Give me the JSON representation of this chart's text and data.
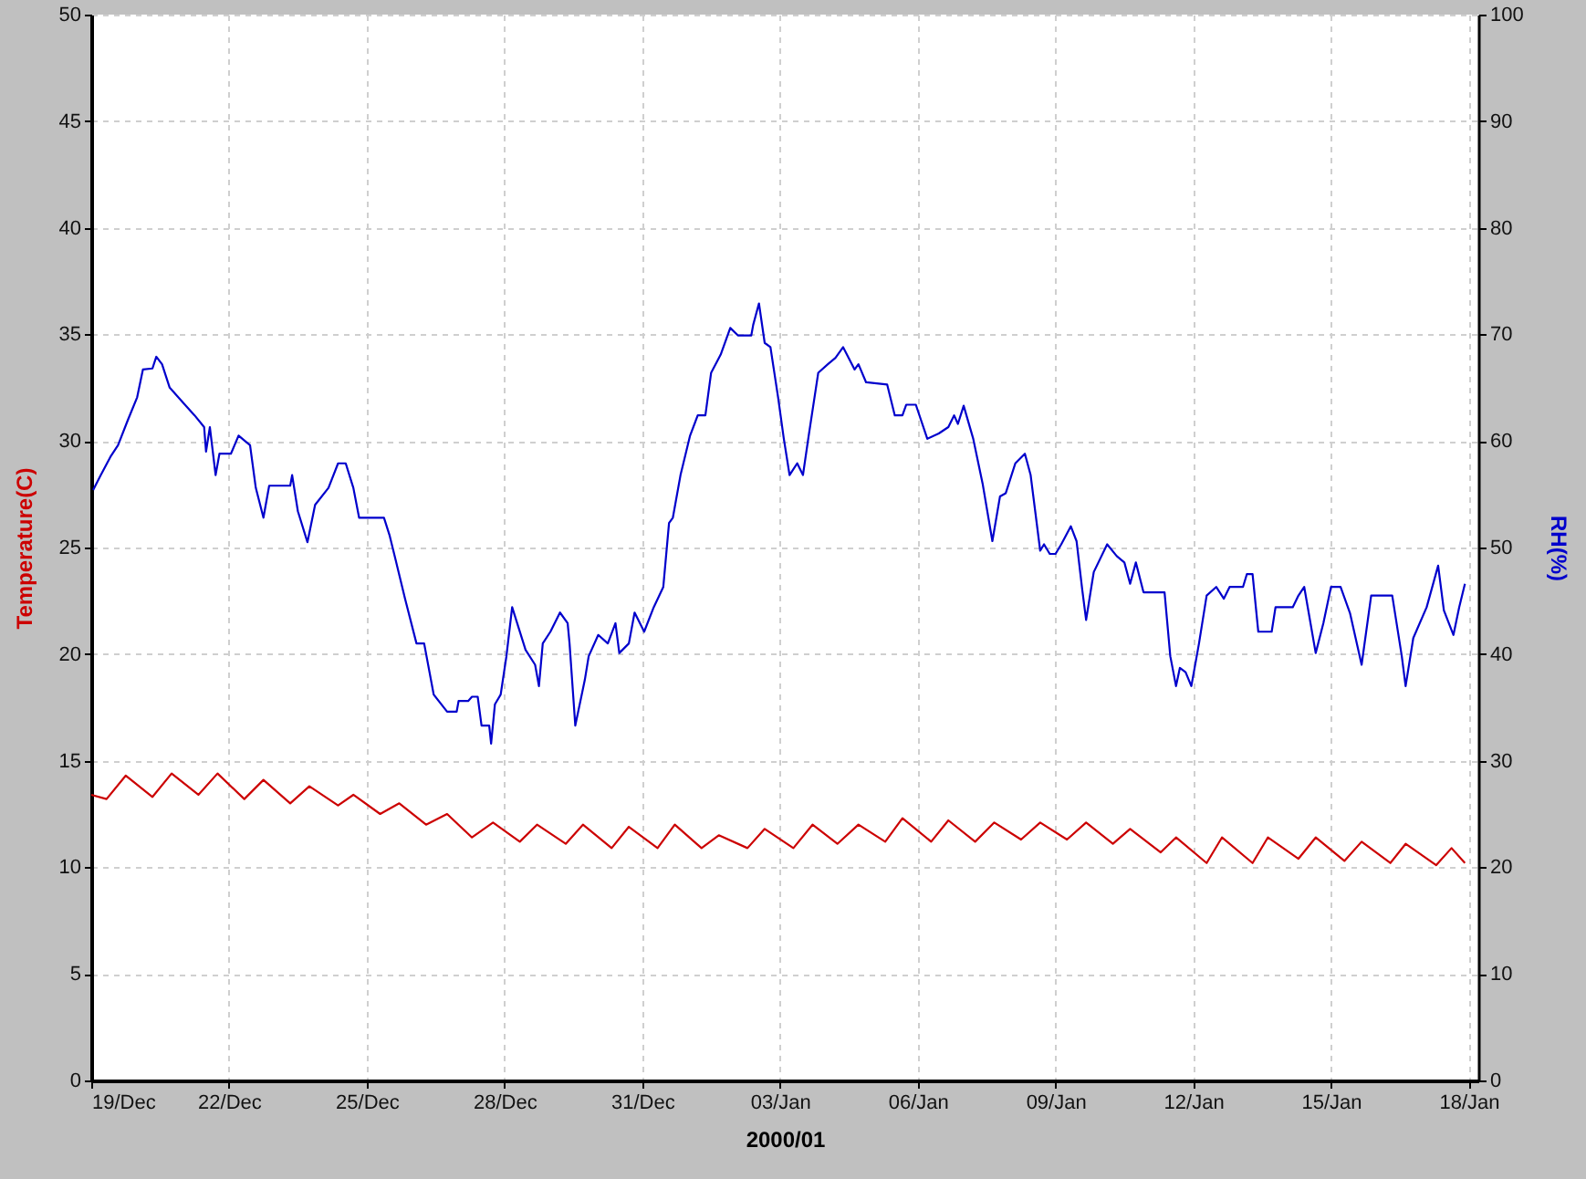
{
  "chart_data": {
    "type": "line",
    "xlabel": "2000/01",
    "ylabel": "Temperature(C)",
    "y2label": "RH(%)",
    "xlim": [
      "1999-12-19T00:00",
      "2000-01-18T05:00"
    ],
    "xticks": [
      {
        "value": "1999-12-19",
        "label": "19/Dec"
      },
      {
        "value": "1999-12-22",
        "label": "22/Dec"
      },
      {
        "value": "1999-12-25",
        "label": "25/Dec"
      },
      {
        "value": "1999-12-28",
        "label": "28/Dec"
      },
      {
        "value": "1999-12-31",
        "label": "31/Dec"
      },
      {
        "value": "2000-01-03",
        "label": "03/Jan"
      },
      {
        "value": "2000-01-06",
        "label": "06/Jan"
      },
      {
        "value": "2000-01-09",
        "label": "09/Jan"
      },
      {
        "value": "2000-01-12",
        "label": "12/Jan"
      },
      {
        "value": "2000-01-15",
        "label": "15/Jan"
      },
      {
        "value": "2000-01-18",
        "label": "18/Jan"
      }
    ],
    "ylim": [
      0,
      50
    ],
    "yticks": [
      0,
      5,
      10,
      15,
      20,
      25,
      30,
      35,
      40,
      45,
      50
    ],
    "y2lim": [
      0,
      100
    ],
    "y2ticks": [
      0,
      10,
      20,
      30,
      40,
      50,
      60,
      70,
      80,
      90,
      100
    ],
    "grid": true,
    "line_style": "solid",
    "series": [
      {
        "color": "#cc0000",
        "x": [
          "1999-12-19T00:00",
          "1999-12-19T08:00",
          "1999-12-19T18:00",
          "1999-12-20T08:00",
          "1999-12-20T18:00",
          "1999-12-21T08:00",
          "1999-12-21T18:00",
          "1999-12-22T08:00",
          "1999-12-22T18:00",
          "1999-12-23T08:00",
          "1999-12-23T18:00",
          "1999-12-24T09:00",
          "1999-12-24T17:00",
          "1999-12-25T07:00",
          "1999-12-25T17:00",
          "1999-12-26T07:00",
          "1999-12-26T18:00",
          "1999-12-27T07:00",
          "1999-12-27T18:00",
          "1999-12-28T08:00",
          "1999-12-28T17:00",
          "1999-12-29T08:00",
          "1999-12-29T17:00",
          "1999-12-30T08:00",
          "1999-12-30T17:00",
          "1999-12-31T08:00",
          "1999-12-31T17:00",
          "2000-01-01T07:00",
          "2000-01-01T16:00",
          "2000-01-02T07:00",
          "2000-01-02T16:00",
          "2000-01-03T07:00",
          "2000-01-03T17:00",
          "2000-01-04T06:00",
          "2000-01-04T17:00",
          "2000-01-05T07:00",
          "2000-01-05T16:00",
          "2000-01-06T07:00",
          "2000-01-06T16:00",
          "2000-01-07T06:00",
          "2000-01-07T16:00",
          "2000-01-08T06:00",
          "2000-01-08T16:00",
          "2000-01-09T06:00",
          "2000-01-09T16:00",
          "2000-01-10T06:00",
          "2000-01-10T15:00",
          "2000-01-11T07:00",
          "2000-01-11T15:00",
          "2000-01-12T07:00",
          "2000-01-12T15:00",
          "2000-01-13T07:00",
          "2000-01-13T15:00",
          "2000-01-14T07:00",
          "2000-01-14T16:00",
          "2000-01-15T07:00",
          "2000-01-15T16:00",
          "2000-01-16T07:00",
          "2000-01-16T15:00",
          "2000-01-17T07:00",
          "2000-01-17T15:00",
          "2000-01-17T22:00"
        ],
        "values": [
          13.4,
          13.2,
          14.3,
          13.3,
          14.4,
          13.4,
          14.4,
          13.2,
          14.1,
          13.0,
          13.8,
          12.9,
          13.4,
          12.5,
          13.0,
          12.0,
          12.5,
          11.4,
          12.1,
          11.2,
          12.0,
          11.1,
          12.0,
          10.9,
          11.9,
          10.9,
          12.0,
          10.9,
          11.5,
          10.9,
          11.8,
          10.9,
          12.0,
          11.1,
          12.0,
          11.2,
          12.3,
          11.2,
          12.2,
          11.2,
          12.1,
          11.3,
          12.1,
          11.3,
          12.1,
          11.1,
          11.8,
          10.7,
          11.4,
          10.2,
          11.4,
          10.2,
          11.4,
          10.4,
          11.4,
          10.3,
          11.2,
          10.2,
          11.1,
          10.1,
          10.9,
          10.2
        ]
      },
      {
        "color": "#0000cc",
        "axis": "y2",
        "x": [
          "1999-12-19T01:00",
          "1999-12-19T05:00",
          "1999-12-19T10:00",
          "1999-12-19T14:00",
          "1999-12-19T19:00",
          "1999-12-20T00:00",
          "1999-12-20T03:00",
          "1999-12-20T08:00",
          "1999-12-20T10:00",
          "1999-12-20T13:00",
          "1999-12-20T17:00",
          "1999-12-21T00:00",
          "1999-12-21T06:00",
          "1999-12-21T11:00",
          "1999-12-21T12:00",
          "1999-12-21T14:00",
          "1999-12-21T17:00",
          "1999-12-21T19:00",
          "1999-12-22T01:00",
          "1999-12-22T05:00",
          "1999-12-22T11:00",
          "1999-12-22T14:00",
          "1999-12-22T18:00",
          "1999-12-22T21:00",
          "1999-12-23T08:00",
          "1999-12-23T09:00",
          "1999-12-23T12:00",
          "1999-12-23T17:00",
          "1999-12-23T21:00",
          "1999-12-24T04:00",
          "1999-12-24T09:00",
          "1999-12-24T13:00",
          "1999-12-24T17:00",
          "1999-12-24T20:00",
          "1999-12-25T09:00",
          "1999-12-25T12:00",
          "1999-12-25T15:00",
          "1999-12-25T20:00",
          "1999-12-26T02:00",
          "1999-12-26T06:00",
          "1999-12-26T11:00",
          "1999-12-26T18:00",
          "1999-12-26T23:00",
          "1999-12-27T00:00",
          "1999-12-27T05:00",
          "1999-12-27T07:00",
          "1999-12-27T10:00",
          "1999-12-27T12:00",
          "1999-12-27T16:00",
          "1999-12-27T17:00",
          "1999-12-27T19:00",
          "1999-12-27T22:00",
          "1999-12-28T01:00",
          "1999-12-28T04:00",
          "1999-12-28T11:00",
          "1999-12-28T16:00",
          "1999-12-28T18:00",
          "1999-12-28T20:00",
          "1999-12-29T00:00",
          "1999-12-29T05:00",
          "1999-12-29T09:00",
          "1999-12-29T10:00",
          "1999-12-29T13:00",
          "1999-12-29T18:00",
          "1999-12-29T20:00",
          "1999-12-30T01:00",
          "1999-12-30T06:00",
          "1999-12-30T10:00",
          "1999-12-30T12:00",
          "1999-12-30T17:00",
          "1999-12-30T20:00",
          "1999-12-31T01:00",
          "1999-12-31T06:00",
          "1999-12-31T11:00",
          "1999-12-31T14:00",
          "1999-12-31T16:00",
          "1999-12-31T20:00",
          "2000-01-01T01:00",
          "2000-01-01T05:00",
          "2000-01-01T09:00",
          "2000-01-01T12:00",
          "2000-01-01T17:00",
          "2000-01-01T22:00",
          "2000-01-02T02:00",
          "2000-01-02T09:00",
          "2000-01-02T10:00",
          "2000-01-02T13:00",
          "2000-01-02T16:00",
          "2000-01-02T19:00",
          "2000-01-02T23:00",
          "2000-01-03T02:00",
          "2000-01-03T05:00",
          "2000-01-03T09:00",
          "2000-01-03T12:00",
          "2000-01-03T15:00",
          "2000-01-03T20:00",
          "2000-01-04T01:00",
          "2000-01-04T05:00",
          "2000-01-04T09:00",
          "2000-01-04T15:00",
          "2000-01-04T17:00",
          "2000-01-04T21:00",
          "2000-01-05T08:00",
          "2000-01-05T12:00",
          "2000-01-05T16:00",
          "2000-01-05T18:00",
          "2000-01-05T23:00",
          "2000-01-06T05:00",
          "2000-01-06T11:00",
          "2000-01-06T16:00",
          "2000-01-06T19:00",
          "2000-01-06T21:00",
          "2000-01-07T00:00",
          "2000-01-07T05:00",
          "2000-01-07T10:00",
          "2000-01-07T15:00",
          "2000-01-07T19:00",
          "2000-01-07T22:00",
          "2000-01-08T03:00",
          "2000-01-08T08:00",
          "2000-01-08T11:00",
          "2000-01-08T16:00",
          "2000-01-08T18:00",
          "2000-01-08T21:00",
          "2000-01-09T00:00",
          "2000-01-09T03:00",
          "2000-01-09T08:00",
          "2000-01-09T11:00",
          "2000-01-09T14:00",
          "2000-01-09T16:00",
          "2000-01-09T19:00",
          "2000-01-09T20:00",
          "2000-01-10T03:00",
          "2000-01-10T08:00",
          "2000-01-10T12:00",
          "2000-01-10T15:00",
          "2000-01-10T18:00",
          "2000-01-10T22:00",
          "2000-01-11T09:00",
          "2000-01-11T12:00",
          "2000-01-11T15:00",
          "2000-01-11T17:00",
          "2000-01-11T20:00",
          "2000-01-11T23:00",
          "2000-01-12T03:00",
          "2000-01-12T07:00",
          "2000-01-12T12:00",
          "2000-01-12T16:00",
          "2000-01-12T19:00",
          "2000-01-13T02:00",
          "2000-01-13T04:00",
          "2000-01-13T07:00",
          "2000-01-13T10:00",
          "2000-01-13T17:00",
          "2000-01-13T19:00",
          "2000-01-14T04:00",
          "2000-01-14T07:00",
          "2000-01-14T10:00",
          "2000-01-14T16:00",
          "2000-01-14T20:00",
          "2000-01-15T00:00",
          "2000-01-15T05:00",
          "2000-01-15T10:00",
          "2000-01-15T16:00",
          "2000-01-15T21:00",
          "2000-01-16T08:00",
          "2000-01-16T13:00",
          "2000-01-16T15:00",
          "2000-01-16T19:00",
          "2000-01-17T02:00",
          "2000-01-17T08:00",
          "2000-01-17T11:00",
          "2000-01-17T16:00",
          "2000-01-17T19:00",
          "2000-01-17T22:00"
        ],
        "values": [
          55.4,
          56.8,
          58.5,
          59.6,
          61.9,
          64.1,
          66.7,
          66.8,
          67.9,
          67.2,
          65.0,
          63.6,
          62.4,
          61.3,
          59.0,
          61.3,
          56.8,
          58.8,
          58.8,
          60.5,
          59.6,
          55.6,
          52.8,
          55.8,
          55.8,
          56.8,
          53.4,
          50.5,
          54.0,
          55.6,
          57.9,
          57.9,
          55.6,
          52.8,
          52.8,
          51.1,
          48.9,
          45.2,
          41.0,
          41.0,
          36.2,
          34.6,
          34.6,
          35.6,
          35.6,
          36.0,
          36.0,
          33.3,
          33.3,
          31.6,
          35.3,
          36.2,
          39.8,
          44.4,
          40.4,
          39.0,
          37.0,
          41.0,
          42.1,
          43.9,
          42.9,
          41.0,
          33.3,
          37.6,
          39.8,
          41.8,
          41.0,
          42.9,
          40.1,
          41.0,
          43.9,
          42.1,
          44.4,
          46.3,
          52.3,
          52.8,
          56.8,
          60.5,
          62.4,
          62.4,
          66.4,
          68.1,
          70.6,
          69.9,
          69.9,
          70.9,
          72.9,
          69.2,
          68.8,
          64.1,
          60.2,
          56.8,
          57.9,
          56.8,
          60.5,
          66.4,
          67.2,
          67.8,
          68.8,
          66.7,
          67.2,
          65.5,
          65.3,
          62.4,
          62.4,
          63.4,
          63.4,
          60.2,
          60.7,
          61.3,
          62.4,
          61.6,
          63.3,
          60.2,
          55.9,
          50.6,
          54.8,
          55.1,
          57.9,
          58.8,
          56.8,
          49.7,
          50.3,
          49.4,
          49.4,
          50.3,
          52.0,
          50.6,
          46.0,
          43.2,
          46.6,
          47.7,
          50.3,
          49.2,
          48.6,
          46.6,
          48.6,
          45.8,
          45.8,
          39.8,
          37.0,
          38.7,
          38.3,
          37.0,
          41.0,
          45.5,
          46.3,
          45.2,
          46.3,
          46.3,
          47.5,
          47.5,
          42.1,
          42.1,
          44.4,
          44.4,
          45.5,
          46.3,
          40.1,
          42.9,
          46.3,
          46.3,
          43.8,
          39.0,
          45.5,
          45.5,
          39.8,
          37.0,
          41.5,
          44.4,
          48.3,
          44.1,
          41.8,
          44.4,
          46.6
        ]
      }
    ]
  }
}
